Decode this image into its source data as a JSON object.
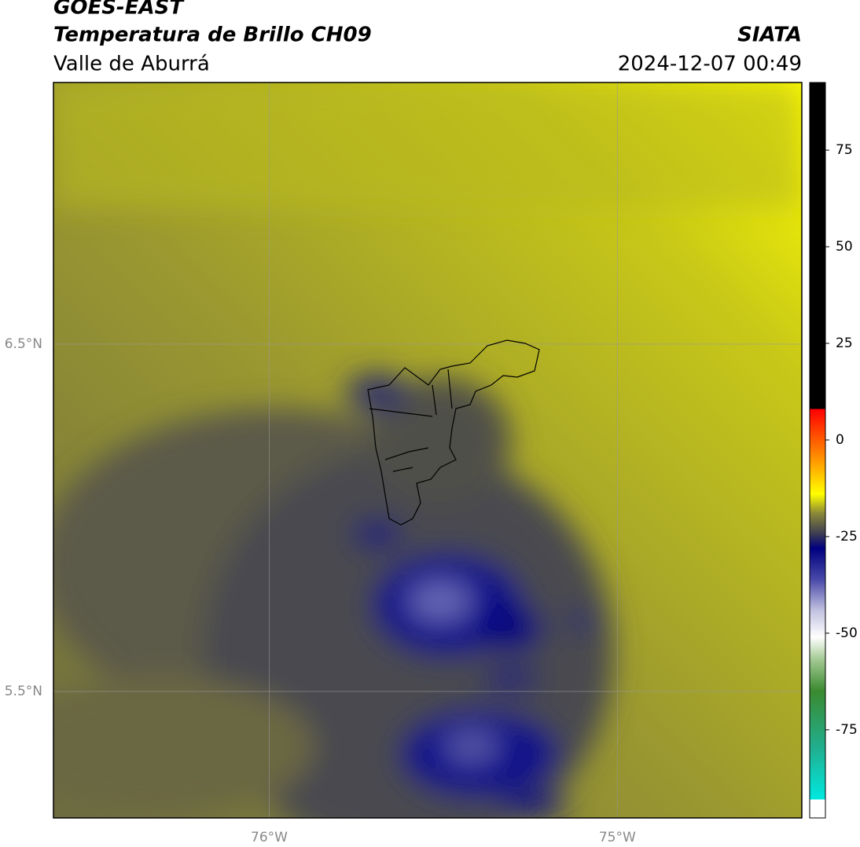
{
  "header": {
    "title": "GOES-EAST",
    "subtitle": "Temperatura de Brillo CH09",
    "region": "Valle de Aburrá",
    "agency": "SIATA",
    "datetime": "2024-12-07 00:49"
  },
  "map": {
    "xlim": [
      -76.62,
      -74.47
    ],
    "ylim": [
      5.136,
      7.253
    ],
    "xticks": [
      {
        "value": -76,
        "label": "76°W"
      },
      {
        "value": -75,
        "label": "75°W"
      }
    ],
    "yticks": [
      {
        "value": 6.5,
        "label": "6.5°N"
      },
      {
        "value": 5.5,
        "label": "5.5°N"
      }
    ],
    "grid": true
  },
  "colorbar": {
    "lim": [
      -97.8,
      92.5
    ],
    "ticks": [
      75,
      50,
      25,
      0,
      -25,
      -50,
      -75
    ],
    "colormap": [
      {
        "value": -97.8,
        "color": "#ffffff"
      },
      {
        "value": -93,
        "color": "#ffffff"
      },
      {
        "value": -93,
        "color": "#00e8e0"
      },
      {
        "value": -80,
        "color": "#20b090"
      },
      {
        "value": -65,
        "color": "#3a8a30"
      },
      {
        "value": -57,
        "color": "#a0c890"
      },
      {
        "value": -51,
        "color": "#ffffff"
      },
      {
        "value": -44,
        "color": "#c0c0e0"
      },
      {
        "value": -36,
        "color": "#4848a8"
      },
      {
        "value": -28,
        "color": "#000080"
      },
      {
        "value": -24,
        "color": "#404050"
      },
      {
        "value": -19,
        "color": "#8a8838"
      },
      {
        "value": -14,
        "color": "#ffff00"
      },
      {
        "value": -6,
        "color": "#ffa000"
      },
      {
        "value": 8,
        "color": "#ff0000"
      },
      {
        "value": 8,
        "color": "#000000"
      },
      {
        "value": 92.5,
        "color": "#000000"
      }
    ]
  }
}
